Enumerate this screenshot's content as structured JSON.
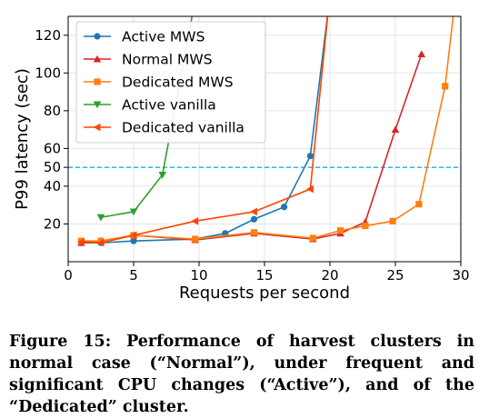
{
  "chart_data": {
    "type": "line",
    "xlabel": "Requests per second",
    "ylabel": "P99 latency (sec)",
    "xlim": [
      0,
      30
    ],
    "ylim": [
      0,
      130
    ],
    "xticks": [
      0,
      5,
      10,
      15,
      20,
      25,
      30
    ],
    "yticks": [
      20,
      40,
      50,
      60,
      80,
      100,
      120
    ],
    "grid": true,
    "legend_position": "top-left",
    "reference_line": {
      "y": 50,
      "color": "#1aaee8",
      "style": "dashed"
    },
    "series": [
      {
        "name": "Active MWS",
        "color": "#1f77b4",
        "marker": "circle",
        "x": [
          1,
          2.5,
          5,
          9.7,
          12,
          14.2,
          16.5,
          18.5,
          19.9
        ],
        "y": [
          10,
          10,
          11,
          12,
          15,
          22.5,
          29,
          56,
          135
        ]
      },
      {
        "name": "Normal MWS",
        "color": "#d62728",
        "marker": "triangle-up",
        "x": [
          1,
          2.5,
          5,
          9.7,
          14.2,
          18.7,
          20.8,
          22.7,
          25,
          27
        ],
        "y": [
          10,
          11,
          14,
          11.5,
          15,
          12,
          15,
          21,
          70,
          110
        ]
      },
      {
        "name": "Dedicated MWS",
        "color": "#ff7f0e",
        "marker": "square",
        "x": [
          1,
          2.5,
          5,
          9.7,
          14.2,
          18.7,
          20.8,
          22.7,
          24.8,
          26.8,
          28.8,
          29.5
        ],
        "y": [
          11,
          11,
          14,
          12,
          15.5,
          12.5,
          16.5,
          19,
          21.5,
          30.5,
          93,
          135
        ]
      },
      {
        "name": "Active vanilla",
        "color": "#2ca02c",
        "marker": "triangle-down",
        "x": [
          2.5,
          5,
          7.2,
          9.6
        ],
        "y": [
          23.5,
          26.5,
          46,
          135
        ]
      },
      {
        "name": "Dedicated vanilla",
        "color": "#ff4500",
        "marker": "triangle-left",
        "x": [
          1,
          2.5,
          5,
          9.7,
          14.2,
          18.5,
          19.9
        ],
        "y": [
          10.5,
          10,
          14,
          21.5,
          26.5,
          38.5,
          135
        ]
      }
    ]
  },
  "caption": "Figure 15: Performance of harvest clusters in normal case (“Normal”), under frequent and significant CPU changes (“Active”), and of the “Dedicated” cluster."
}
